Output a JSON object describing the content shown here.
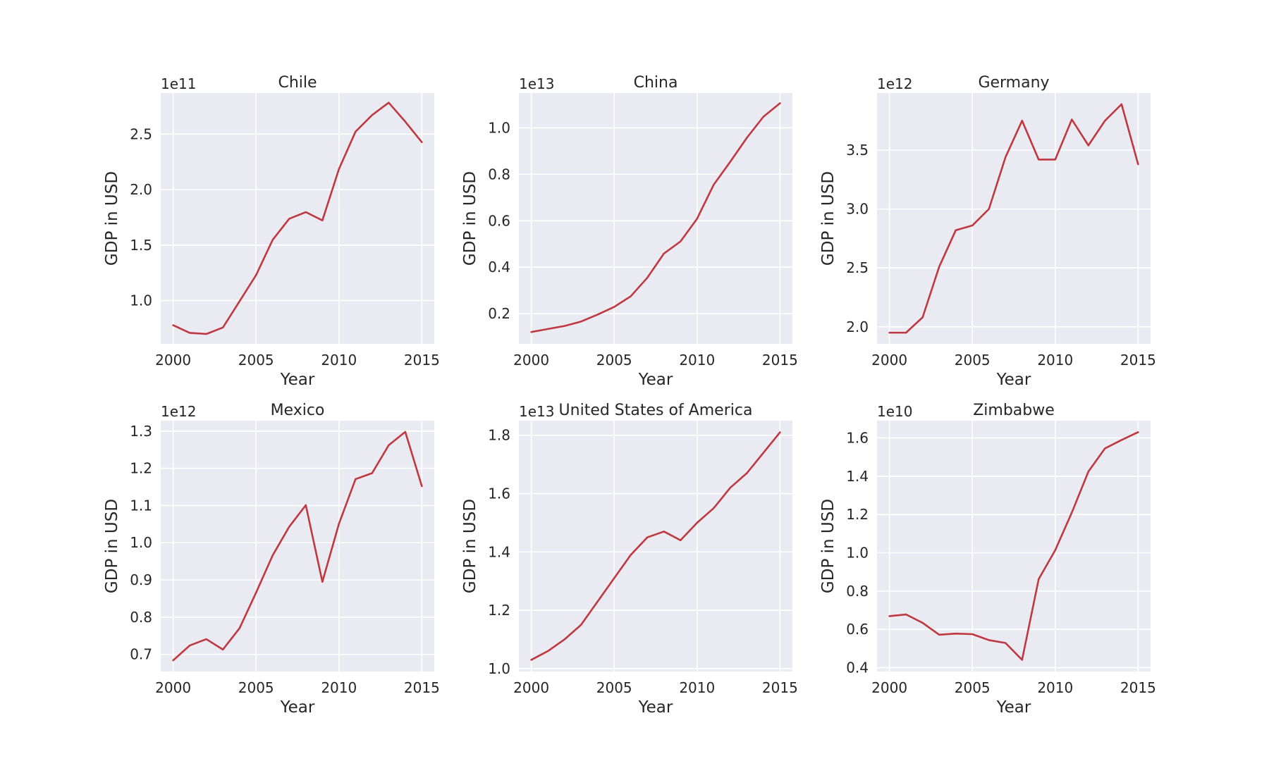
{
  "figure": {
    "line_color": "#C0383F",
    "background": "#EAEAF2"
  },
  "chart_data": [
    {
      "type": "line",
      "title": "Chile",
      "xlabel": "Year",
      "ylabel": "GDP in USD",
      "offset_label": "1e11",
      "scale": 100000000000.0,
      "x": [
        2000,
        2001,
        2002,
        2003,
        2004,
        2005,
        2006,
        2007,
        2008,
        2009,
        2010,
        2011,
        2012,
        2013,
        2014,
        2015
      ],
      "y": [
        0.778,
        0.709,
        0.699,
        0.757,
        0.993,
        1.229,
        1.547,
        1.737,
        1.797,
        1.722,
        2.185,
        2.522,
        2.671,
        2.783,
        2.612,
        2.427
      ],
      "xlim": [
        1999.25,
        2015.75
      ],
      "ylim": [
        0.61,
        2.87
      ],
      "xticks": [
        2000,
        2005,
        2010,
        2015
      ],
      "yticks": [
        1.0,
        1.5,
        2.0,
        2.5
      ],
      "ytick_labels": [
        "1.0",
        "1.5",
        "2.0",
        "2.5"
      ],
      "grid": true
    },
    {
      "type": "line",
      "title": "China",
      "xlabel": "Year",
      "ylabel": "GDP in USD",
      "offset_label": "1e13",
      "scale": 10000000000000.0,
      "x": [
        2000,
        2001,
        2002,
        2003,
        2004,
        2005,
        2006,
        2007,
        2008,
        2009,
        2010,
        2011,
        2012,
        2013,
        2014,
        2015
      ],
      "y": [
        0.121,
        0.134,
        0.147,
        0.166,
        0.196,
        0.229,
        0.275,
        0.355,
        0.459,
        0.511,
        0.609,
        0.755,
        0.854,
        0.957,
        1.048,
        1.106
      ],
      "xlim": [
        1999.25,
        2015.75
      ],
      "ylim": [
        0.07,
        1.15
      ],
      "xticks": [
        2000,
        2005,
        2010,
        2015
      ],
      "yticks": [
        0.2,
        0.4,
        0.6,
        0.8,
        1.0
      ],
      "ytick_labels": [
        "0.2",
        "0.4",
        "0.6",
        "0.8",
        "1.0"
      ],
      "grid": true
    },
    {
      "type": "line",
      "title": "Germany",
      "xlabel": "Year",
      "ylabel": "GDP in USD",
      "offset_label": "1e12",
      "scale": 1000000000000.0,
      "x": [
        2000,
        2001,
        2002,
        2003,
        2004,
        2005,
        2006,
        2007,
        2008,
        2009,
        2010,
        2011,
        2012,
        2013,
        2014,
        2015
      ],
      "y": [
        1.95,
        1.95,
        2.08,
        2.51,
        2.82,
        2.86,
        3.0,
        3.44,
        3.75,
        3.42,
        3.42,
        3.76,
        3.54,
        3.75,
        3.89,
        3.38
      ],
      "xlim": [
        1999.25,
        2015.75
      ],
      "ylim": [
        1.855,
        3.985
      ],
      "xticks": [
        2000,
        2005,
        2010,
        2015
      ],
      "yticks": [
        2.0,
        2.5,
        3.0,
        3.5
      ],
      "ytick_labels": [
        "2.0",
        "2.5",
        "3.0",
        "3.5"
      ],
      "grid": true
    },
    {
      "type": "line",
      "title": "Mexico",
      "xlabel": "Year",
      "ylabel": "GDP in USD",
      "offset_label": "1e12",
      "scale": 1000000000000.0,
      "x": [
        2000,
        2001,
        2002,
        2003,
        2004,
        2005,
        2006,
        2007,
        2008,
        2009,
        2010,
        2011,
        2012,
        2013,
        2014,
        2015
      ],
      "y": [
        0.684,
        0.724,
        0.741,
        0.713,
        0.77,
        0.866,
        0.966,
        1.043,
        1.101,
        0.895,
        1.051,
        1.171,
        1.187,
        1.262,
        1.298,
        1.152
      ],
      "xlim": [
        1999.25,
        2015.75
      ],
      "ylim": [
        0.654,
        1.328
      ],
      "xticks": [
        2000,
        2005,
        2010,
        2015
      ],
      "yticks": [
        0.7,
        0.8,
        0.9,
        1.0,
        1.1,
        1.2,
        1.3
      ],
      "ytick_labels": [
        "0.7",
        "0.8",
        "0.9",
        "1.0",
        "1.1",
        "1.2",
        "1.3"
      ],
      "grid": true
    },
    {
      "type": "line",
      "title": "United States of America",
      "xlabel": "Year",
      "ylabel": "GDP in USD",
      "offset_label": "1e13",
      "scale": 10000000000000.0,
      "x": [
        2000,
        2001,
        2002,
        2003,
        2004,
        2005,
        2006,
        2007,
        2008,
        2009,
        2010,
        2011,
        2012,
        2013,
        2014,
        2015
      ],
      "y": [
        1.03,
        1.06,
        1.1,
        1.15,
        1.23,
        1.31,
        1.39,
        1.45,
        1.47,
        1.44,
        1.5,
        1.55,
        1.62,
        1.67,
        1.74,
        1.81
      ],
      "xlim": [
        1999.25,
        2015.75
      ],
      "ylim": [
        0.99,
        1.85
      ],
      "xticks": [
        2000,
        2005,
        2010,
        2015
      ],
      "yticks": [
        1.0,
        1.2,
        1.4,
        1.6,
        1.8
      ],
      "ytick_labels": [
        "1.0",
        "1.2",
        "1.4",
        "1.6",
        "1.8"
      ],
      "grid": true
    },
    {
      "type": "line",
      "title": "Zimbabwe",
      "xlabel": "Year",
      "ylabel": "GDP in USD",
      "offset_label": "1e10",
      "scale": 10000000000.0,
      "x": [
        2000,
        2001,
        2002,
        2003,
        2004,
        2005,
        2006,
        2007,
        2008,
        2009,
        2010,
        2011,
        2012,
        2013,
        2014,
        2015
      ],
      "y": [
        0.669,
        0.678,
        0.634,
        0.572,
        0.578,
        0.575,
        0.544,
        0.529,
        0.441,
        0.862,
        1.014,
        1.21,
        1.424,
        1.545,
        1.589,
        1.63
      ],
      "xlim": [
        1999.25,
        2015.75
      ],
      "ylim": [
        0.38,
        1.69
      ],
      "xticks": [
        2000,
        2005,
        2010,
        2015
      ],
      "yticks": [
        0.4,
        0.6,
        0.8,
        1.0,
        1.2,
        1.4,
        1.6
      ],
      "ytick_labels": [
        "0.4",
        "0.6",
        "0.8",
        "1.0",
        "1.2",
        "1.4",
        "1.6"
      ],
      "grid": true
    }
  ]
}
